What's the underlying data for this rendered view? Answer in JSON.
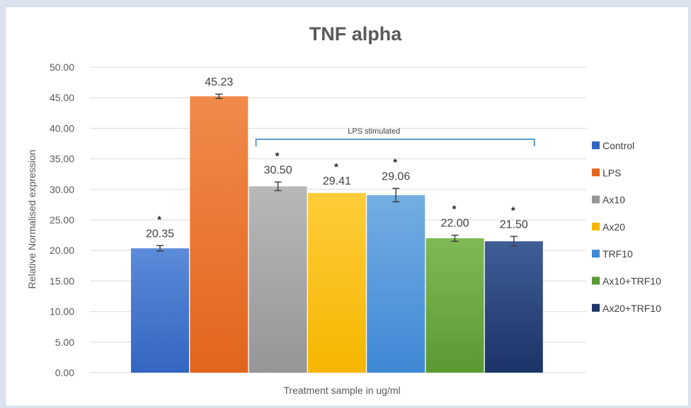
{
  "chart_data": {
    "type": "bar",
    "title": "TNF alpha",
    "xlabel": "Treatment  sample in ug/ml",
    "ylabel": "Relative Normalised expression",
    "ylim": [
      0,
      50
    ],
    "ytick_step": 5,
    "ytick_labels": [
      "0.00",
      "5.00",
      "10.00",
      "15.00",
      "20.00",
      "25.00",
      "30.00",
      "35.00",
      "40.00",
      "45.00",
      "50.00"
    ],
    "grid": true,
    "legend_position": "right",
    "categories": [
      "Control",
      "LPS",
      "Ax10",
      "Ax20",
      "TRF10",
      "Ax10+TRF10",
      "Ax20+TRF10"
    ],
    "values": [
      20.35,
      45.23,
      30.5,
      29.41,
      29.06,
      22.0,
      21.5
    ],
    "value_labels": [
      "20.35",
      "45.23",
      "30.50",
      "29.41",
      "29.06",
      "22.00",
      "21.50"
    ],
    "error": [
      0.45,
      0.35,
      0.7,
      0.0,
      1.1,
      0.5,
      0.8
    ],
    "significance": [
      "*",
      "",
      "*",
      "*",
      "*",
      "*",
      "*"
    ],
    "colors_top": [
      "#5b8bd8",
      "#f08a4b",
      "#b8b8b8",
      "#ffcd3a",
      "#74aee3",
      "#7fb955",
      "#3f5d96"
    ],
    "colors_bottom": [
      "#3465c2",
      "#e2651c",
      "#969696",
      "#f5b600",
      "#3f88d4",
      "#5a9a32",
      "#1c3468"
    ],
    "annotation": {
      "text": "LPS stimulated",
      "from_category": "Ax10",
      "to_category": "Ax20+TRF10",
      "color": "#5b9bd5"
    }
  }
}
